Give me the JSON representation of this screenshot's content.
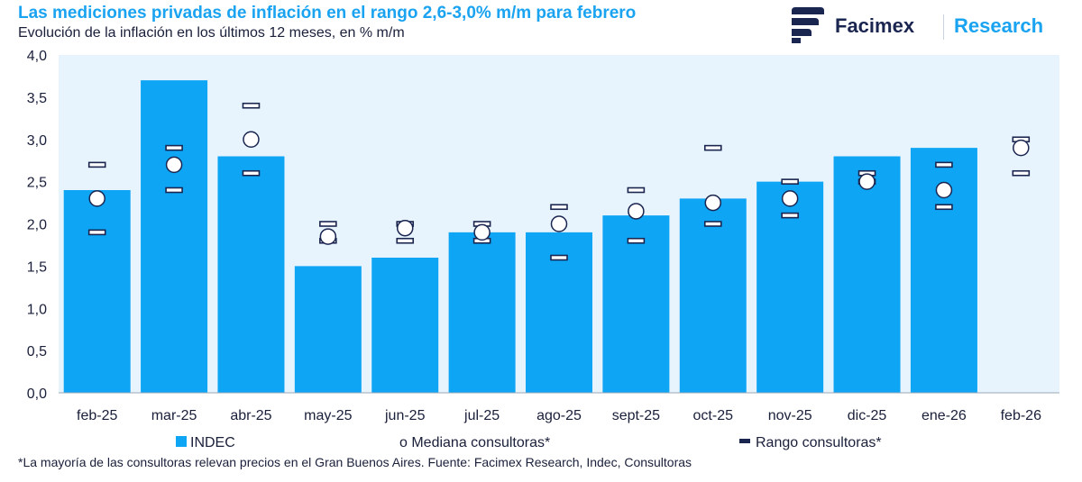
{
  "header": {
    "title": "Las mediciones privadas de inflación en el rango 2,6-3,0% m/m para febrero",
    "subtitle": "Evolución de la inflación en los últimos 12 meses, en % m/m"
  },
  "brand": {
    "name": "Facimex",
    "sub": "Research",
    "logo_color": "#1a2550"
  },
  "footnote": "*La mayoría de las consultoras relevan precios en el Gran Buenos Aires. Fuente: Facimex Research, Indec, Consultoras",
  "colors": {
    "bar": "#0ea5f5",
    "plot_bg": "#e8f4fd",
    "marker_stroke": "#1a2550"
  },
  "legend": {
    "indec": "INDEC",
    "mediana": "o Mediana consultoras*",
    "rango": "Rango consultoras*"
  },
  "chart_data": {
    "type": "bar",
    "categories": [
      "feb-25",
      "mar-25",
      "abr-25",
      "may-25",
      "jun-25",
      "jul-25",
      "ago-25",
      "sept-25",
      "oct-25",
      "nov-25",
      "dic-25",
      "ene-26",
      "feb-26"
    ],
    "series": [
      {
        "name": "INDEC",
        "type": "bar",
        "values": [
          2.4,
          3.7,
          2.8,
          1.5,
          1.6,
          1.9,
          1.9,
          2.1,
          2.3,
          2.5,
          2.8,
          2.9,
          null
        ]
      },
      {
        "name": "Mediana consultoras*",
        "type": "scatter",
        "values": [
          2.3,
          2.7,
          3.0,
          1.85,
          1.95,
          1.9,
          2.0,
          2.15,
          2.25,
          2.3,
          2.5,
          2.4,
          2.9
        ]
      },
      {
        "name": "Rango consultoras* (máx)",
        "type": "range_high",
        "values": [
          2.7,
          2.9,
          3.4,
          2.0,
          2.0,
          2.0,
          2.2,
          2.4,
          2.9,
          2.5,
          2.6,
          2.7,
          3.0
        ]
      },
      {
        "name": "Rango consultoras* (mín)",
        "type": "range_low",
        "values": [
          1.9,
          2.4,
          2.6,
          1.8,
          1.8,
          1.8,
          1.6,
          1.8,
          2.0,
          2.1,
          2.5,
          2.2,
          2.6
        ]
      }
    ],
    "yticks": [
      "0,0",
      "0,5",
      "1,0",
      "1,5",
      "2,0",
      "2,5",
      "3,0",
      "3,5",
      "4,0"
    ],
    "ylim": [
      0,
      4
    ],
    "grid": false,
    "legend_position": "bottom"
  }
}
